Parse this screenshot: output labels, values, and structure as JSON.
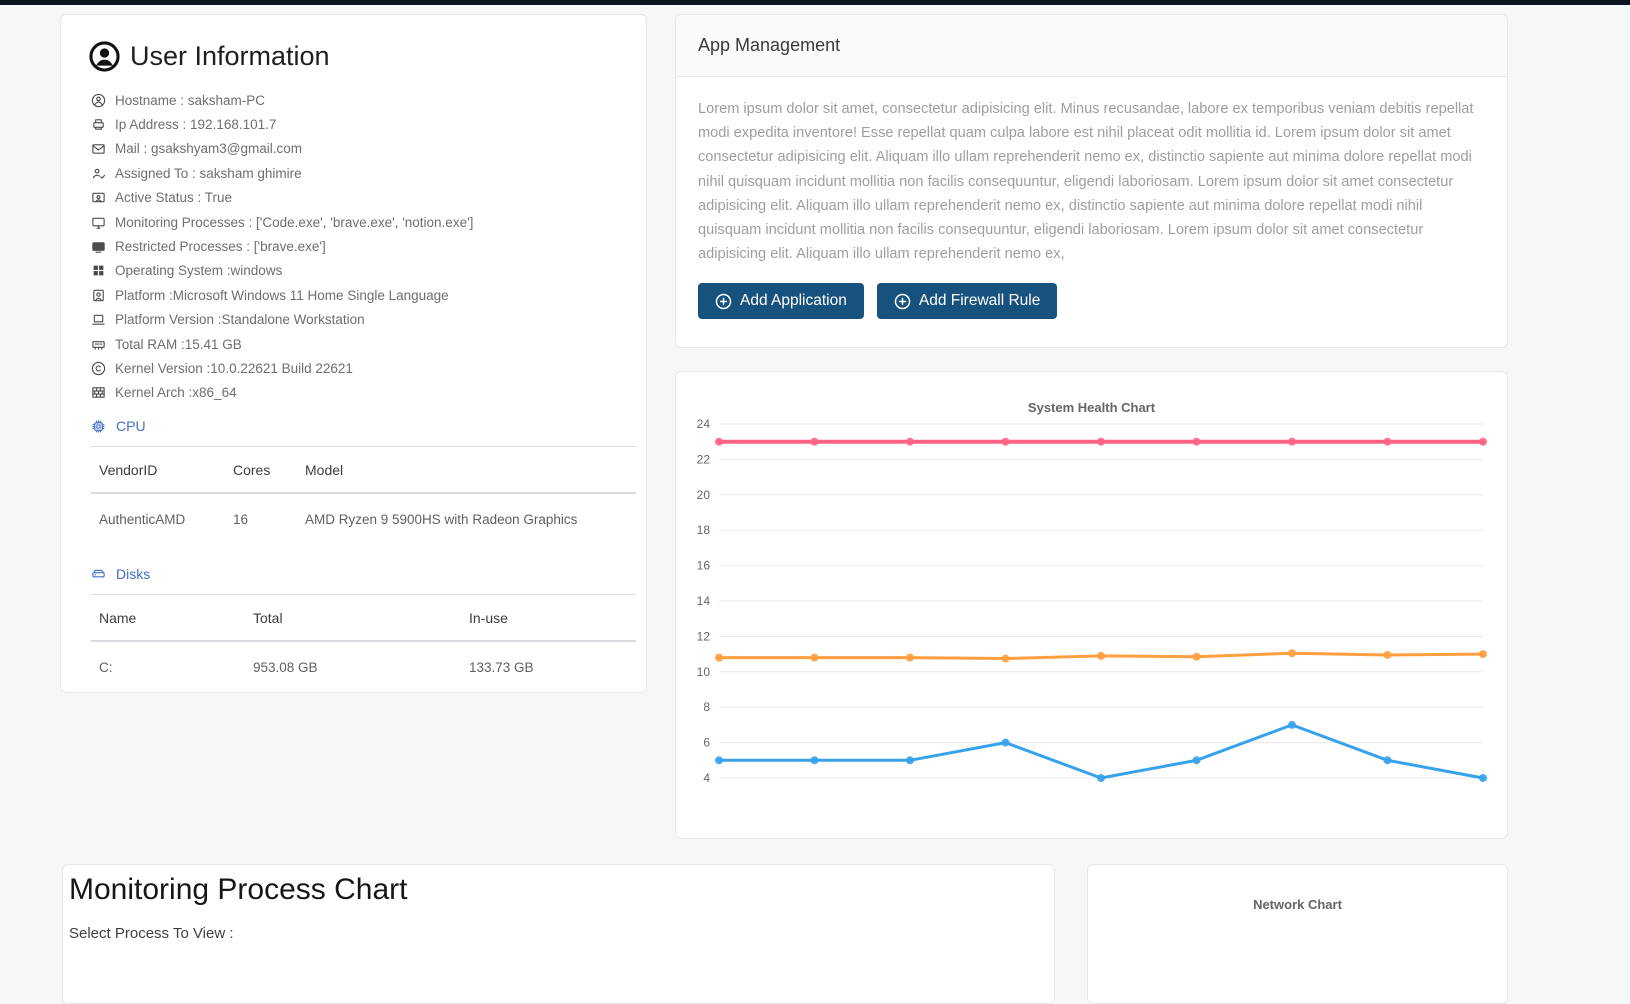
{
  "colors": {
    "top_bar": "#0d1522",
    "accent_button": "#17527e",
    "link_blue": "#4070c8",
    "series_pink": "#ff6384",
    "series_orange": "#ff9f40",
    "series_blue": "#36a2eb"
  },
  "user_info": {
    "title": "User Information",
    "items": [
      {
        "icon": "person-circle-icon",
        "text": "Hostname : saksham-PC"
      },
      {
        "icon": "printer-icon",
        "text": "Ip Address : 192.168.101.7"
      },
      {
        "icon": "envelope-icon",
        "text": "Mail : gsakshyam3@gmail.com"
      },
      {
        "icon": "person-check-icon",
        "text": "Assigned To : saksham ghimire"
      },
      {
        "icon": "person-video-icon",
        "text": "Active Status : True"
      },
      {
        "icon": "display-icon",
        "text": "Monitoring Processes : ['Code.exe', 'brave.exe', 'notion.exe']"
      },
      {
        "icon": "tv-icon",
        "text": "Restricted Processes : ['brave.exe']"
      },
      {
        "icon": "windows-icon",
        "text": "Operating System :windows"
      },
      {
        "icon": "person-badge-icon",
        "text": "Platform :Microsoft Windows 11 Home Single Language"
      },
      {
        "icon": "laptop-icon",
        "text": "Platform Version :Standalone Workstation"
      },
      {
        "icon": "memory-icon",
        "text": "Total RAM :15.41 GB"
      },
      {
        "icon": "copyright-icon",
        "text": "Kernel Version :10.0.22621 Build 22621"
      },
      {
        "icon": "bricks-icon",
        "text": "Kernel Arch :x86_64"
      }
    ],
    "cpu": {
      "label": "CPU",
      "columns": [
        "VendorID",
        "Cores",
        "Model"
      ],
      "rows": [
        [
          "AuthenticAMD",
          "16",
          "AMD Ryzen 9 5900HS with Radeon Graphics"
        ]
      ]
    },
    "disks": {
      "label": "Disks",
      "columns": [
        "Name",
        "Total",
        "In-use"
      ],
      "rows": [
        [
          "C:",
          "953.08 GB",
          "133.73 GB"
        ]
      ]
    }
  },
  "app_management": {
    "title": "App Management",
    "description": "Lorem ipsum dolor sit amet, consectetur adipisicing elit. Minus recusandae, labore ex temporibus veniam debitis repellat modi expedita inventore! Esse repellat quam culpa labore est nihil placeat odit mollitia id. Lorem ipsum dolor sit amet consectetur adipisicing elit. Aliquam illo ullam reprehenderit nemo ex, distinctio sapiente aut minima dolore repellat modi nihil quisquam incidunt mollitia non facilis consequuntur, eligendi laboriosam. Lorem ipsum dolor sit amet consectetur adipisicing elit. Aliquam illo ullam reprehenderit nemo ex, distinctio sapiente aut minima dolore repellat modi nihil quisquam incidunt mollitia non facilis consequuntur, eligendi laboriosam. Lorem ipsum dolor sit amet consectetur adipisicing elit. Aliquam illo ullam reprehenderit nemo ex,",
    "buttons": [
      {
        "label": "Add Application",
        "icon": "plus-circle-icon"
      },
      {
        "label": "Add Firewall Rule",
        "icon": "plus-circle-icon"
      }
    ]
  },
  "chart_data": {
    "type": "line",
    "title": "System Health Chart",
    "points": 9,
    "x_labels_visible": false,
    "ylim": [
      4,
      24
    ],
    "ytick_step": 2,
    "grid": true,
    "legend": false,
    "series": [
      {
        "name": "series-pink",
        "color": "#ff6384",
        "width": 4,
        "values": [
          23,
          23,
          23,
          23,
          23,
          23,
          23,
          23,
          23
        ]
      },
      {
        "name": "series-orange",
        "color": "#ff9f40",
        "width": 3,
        "values": [
          10.8,
          10.8,
          10.8,
          10.75,
          10.9,
          10.85,
          11.05,
          10.95,
          11.0
        ]
      },
      {
        "name": "series-blue",
        "color": "#36a2eb",
        "width": 3,
        "values": [
          5,
          5,
          5,
          6,
          4,
          5,
          7,
          5,
          4
        ]
      }
    ]
  },
  "monitoring": {
    "title": "Monitoring Process Chart",
    "select_label": "Select Process To View :"
  },
  "network_chart": {
    "title": "Network Chart"
  }
}
